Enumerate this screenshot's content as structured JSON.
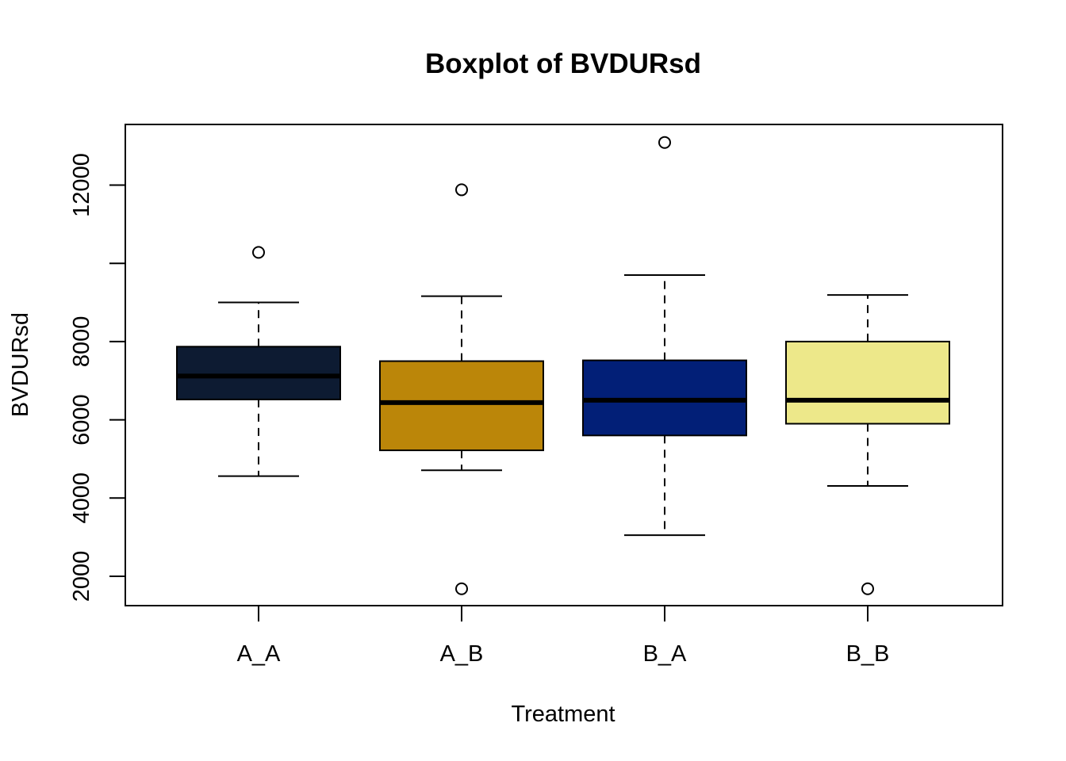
{
  "chart_data": {
    "type": "boxplot",
    "title": "Boxplot of BVDURsd",
    "xlabel": "Treatment",
    "ylabel": "BVDURsd",
    "categories": [
      "A_A",
      "A_B",
      "B_A",
      "B_B"
    ],
    "yticks": [
      2000,
      4000,
      6000,
      8000,
      12000
    ],
    "ylim": [
      1250,
      13550
    ],
    "grid": false,
    "legend": "none",
    "boxes": [
      {
        "category": "A_A",
        "whisker_low": 4560,
        "q1": 6520,
        "median": 7120,
        "q3": 7870,
        "whisker_high": 9000,
        "outliers": [
          10280
        ],
        "fill": "#0d1b32"
      },
      {
        "category": "A_B",
        "whisker_low": 4710,
        "q1": 5220,
        "median": 6440,
        "q3": 7500,
        "whisker_high": 9160,
        "outliers": [
          11880,
          1680
        ],
        "fill": "#bb8609"
      },
      {
        "category": "B_A",
        "whisker_low": 3050,
        "q1": 5600,
        "median": 6500,
        "q3": 7520,
        "whisker_high": 9700,
        "outliers": [
          13090
        ],
        "fill": "#021f77"
      },
      {
        "category": "B_B",
        "whisker_low": 4310,
        "q1": 5900,
        "median": 6500,
        "q3": 8000,
        "whisker_high": 9190,
        "outliers": [
          1680
        ],
        "fill": "#ede88a"
      }
    ]
  }
}
